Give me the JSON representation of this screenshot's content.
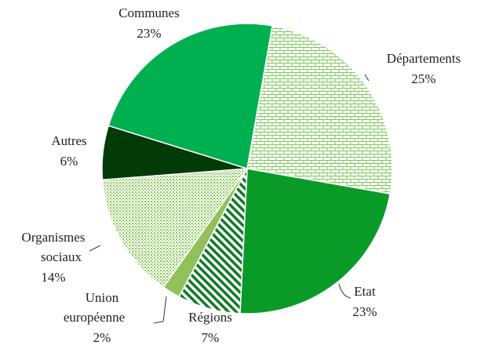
{
  "chart_data": {
    "type": "pie",
    "categories": [
      "Départements",
      "Etat",
      "Régions",
      "Union européenne",
      "Organismes sociaux",
      "Autres",
      "Communes"
    ],
    "values": [
      25,
      23,
      7,
      2,
      14,
      6,
      23
    ],
    "value_labels": [
      "25%",
      "23%",
      "7%",
      "2%",
      "14%",
      "6%",
      "23%"
    ],
    "colors": [
      "#7cc85a",
      "#0a9a28",
      "#0e7a25",
      "#92c05a",
      "#8cc860",
      "#023a08",
      "#00b050"
    ],
    "patterns": [
      "brick",
      "solid",
      "diagonal",
      "solid",
      "dots",
      "solid",
      "solid"
    ],
    "start_angle": 10
  }
}
